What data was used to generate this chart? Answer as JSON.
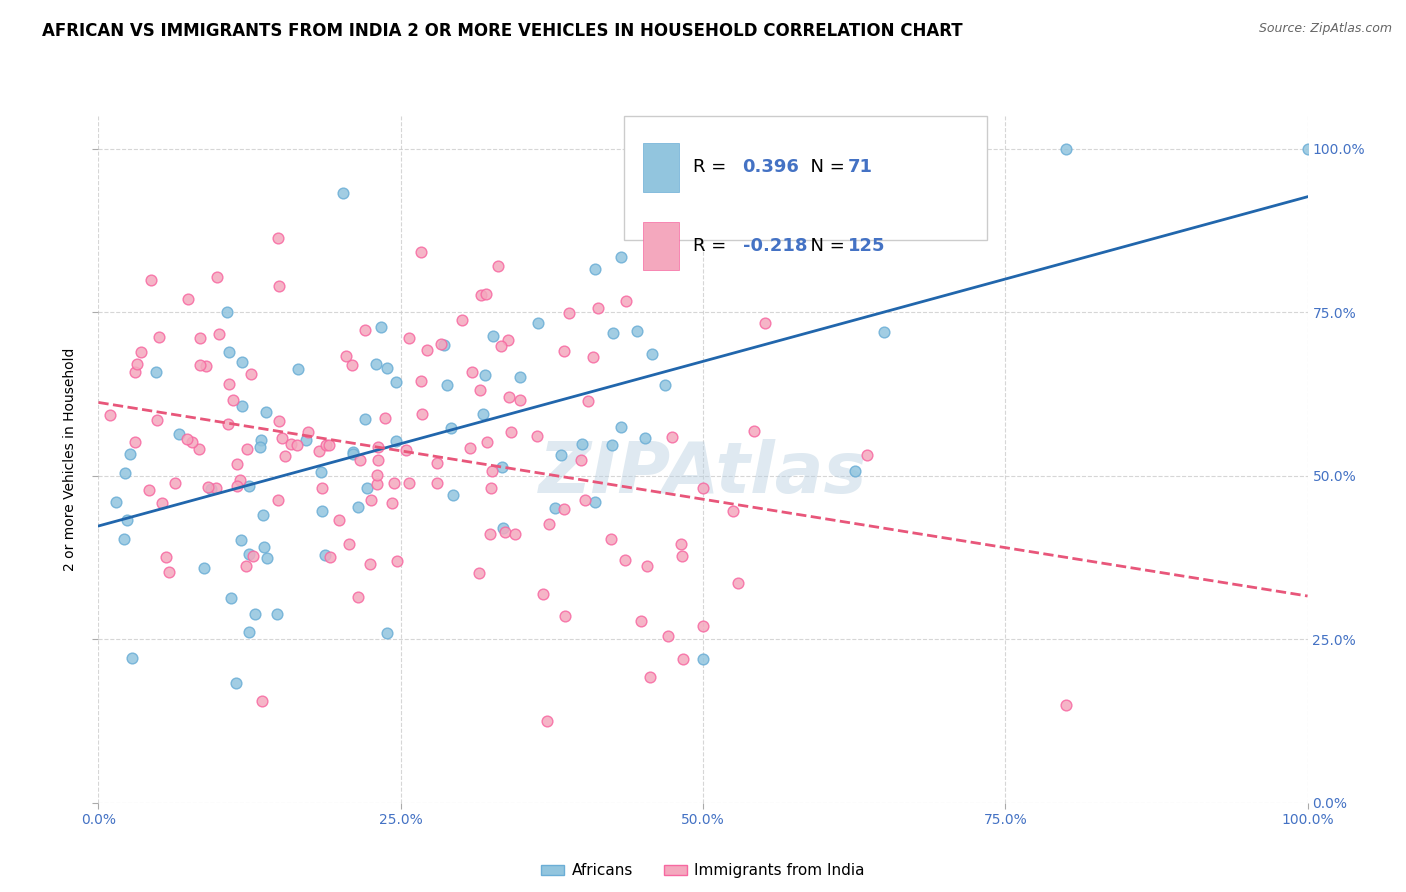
{
  "title": "AFRICAN VS IMMIGRANTS FROM INDIA 2 OR MORE VEHICLES IN HOUSEHOLD CORRELATION CHART",
  "source": "Source: ZipAtlas.com",
  "ylabel": "2 or more Vehicles in Household",
  "blue_color": "#92c5de",
  "pink_color": "#f4a8be",
  "blue_edge_color": "#6baed6",
  "pink_edge_color": "#f768a1",
  "blue_line_color": "#2166ac",
  "pink_line_color": "#e8567a",
  "r_blue": 0.396,
  "n_blue": 71,
  "r_pink": -0.218,
  "n_pink": 125,
  "legend_label_blue": "Africans",
  "legend_label_pink": "Immigrants from India",
  "watermark": "ZIPAtlas",
  "background_color": "#ffffff",
  "grid_color": "#cccccc",
  "tick_color": "#4472c4",
  "title_fontsize": 12,
  "axis_label_fontsize": 10,
  "tick_fontsize": 10,
  "legend_fontsize": 13,
  "watermark_fontsize": 52,
  "watermark_color": "#b8cfe0",
  "watermark_alpha": 0.45
}
